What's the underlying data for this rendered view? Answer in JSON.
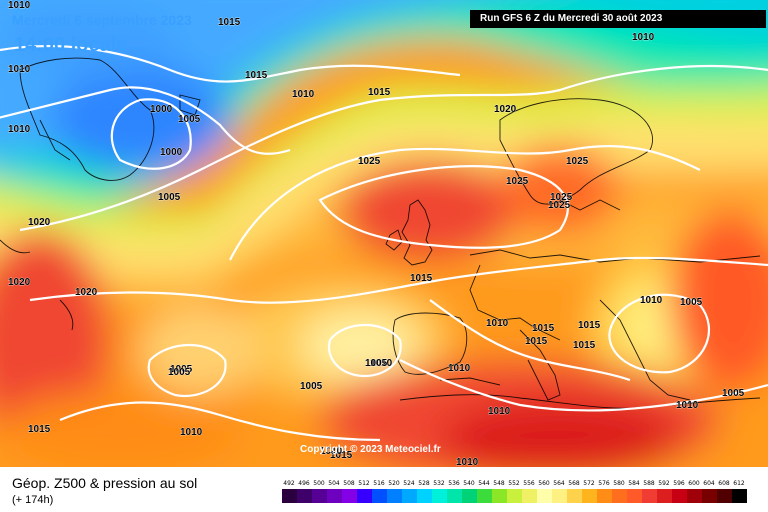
{
  "header": {
    "date": "Mercredi 6 septembre 2023",
    "time": "14:00 locale",
    "run": "Run GFS 6 Z du Mercredi 30 août 2023"
  },
  "footer": {
    "title": "Géop. Z500 & pression au sol",
    "subtitle": "(+ 174h)",
    "copyright": "Copyright © 2023 Meteociel.fr"
  },
  "legend": {
    "values": [
      "492",
      "496",
      "500",
      "504",
      "508",
      "512",
      "516",
      "520",
      "524",
      "528",
      "532",
      "536",
      "540",
      "544",
      "548",
      "552",
      "556",
      "560",
      "564",
      "568",
      "572",
      "576",
      "580",
      "584",
      "588",
      "592",
      "596",
      "600",
      "604",
      "608",
      "612"
    ],
    "colors": [
      "#2a003f",
      "#3e0069",
      "#560096",
      "#6e00c0",
      "#8400e6",
      "#3500ff",
      "#0050ff",
      "#0080ff",
      "#00a8ff",
      "#00d2ff",
      "#00f0dc",
      "#00e6aa",
      "#00d278",
      "#3cdc3c",
      "#8ce628",
      "#c8f03c",
      "#f0f064",
      "#ffffaa",
      "#fff082",
      "#ffd24b",
      "#ffb41e",
      "#ff8c14",
      "#ff6e1e",
      "#ff5a28",
      "#f03c32",
      "#dc1e1e",
      "#c80014",
      "#a0000a",
      "#780000",
      "#500000",
      "#000000"
    ]
  },
  "map": {
    "isobar_labels": [
      "1010",
      "1015",
      "1010",
      "1010",
      "1015",
      "1010",
      "1005",
      "1000",
      "1000",
      "1005",
      "1010",
      "1020",
      "1020",
      "1025",
      "1025",
      "1025",
      "1025",
      "1025",
      "1020",
      "1015",
      "1020",
      "1010",
      "1015",
      "1015",
      "1015",
      "1015",
      "1015",
      "1010",
      "1010",
      "1005",
      "1005",
      "1010",
      "1010",
      "1010",
      "1010",
      "1010",
      "1005",
      "1005",
      "1015",
      "1005",
      "1015",
      "1005",
      "1010"
    ]
  }
}
